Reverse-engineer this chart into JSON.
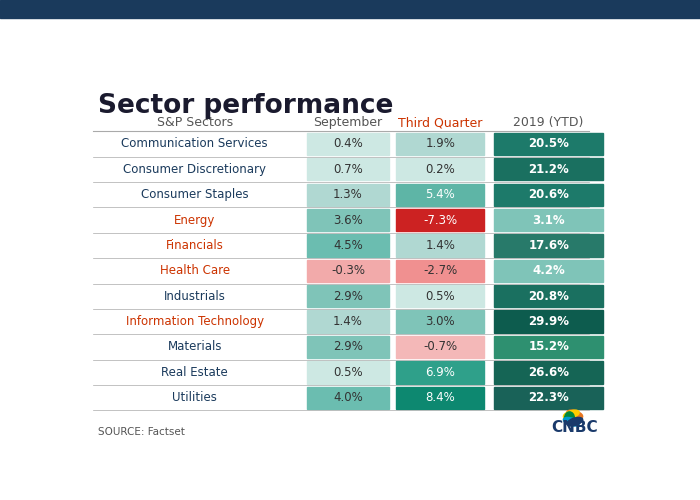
{
  "title": "Sector performance",
  "source": "SOURCE: Factset",
  "header": [
    "S&P Sectors",
    "September",
    "Third Quarter",
    "2019 (YTD)"
  ],
  "sectors": [
    "Communication Services",
    "Consumer Discretionary",
    "Consumer Staples",
    "Energy",
    "Financials",
    "Health Care",
    "Industrials",
    "Information Technology",
    "Materials",
    "Real Estate",
    "Utilities"
  ],
  "september": [
    0.4,
    0.7,
    1.3,
    3.6,
    4.5,
    -0.3,
    2.9,
    1.4,
    2.9,
    0.5,
    4.0
  ],
  "third_quarter": [
    1.9,
    0.2,
    5.4,
    -7.3,
    1.4,
    -2.7,
    0.5,
    3.0,
    -0.7,
    6.9,
    8.4
  ],
  "ytd": [
    20.5,
    21.2,
    20.6,
    3.1,
    17.6,
    4.2,
    20.8,
    29.9,
    15.2,
    26.6,
    22.3
  ],
  "top_bar_color": "#1a3a5c",
  "title_color": "#1a1a2e",
  "header_color_q3": "#cc3300",
  "header_color_other": "#555555",
  "sector_text_colors": [
    "#1a3a5c",
    "#1a3a5c",
    "#1a3a5c",
    "#cc3300",
    "#cc3300",
    "#cc3300",
    "#1a3a5c",
    "#cc3300",
    "#1a3a5c",
    "#1a3a5c",
    "#1a3a5c"
  ],
  "sept_colors": [
    "#cde8e3",
    "#cde8e3",
    "#b0d8d2",
    "#7fc4b8",
    "#6bbdb0",
    "#f2aaaa",
    "#7fc4b8",
    "#b0d8d2",
    "#7fc4b8",
    "#cde8e3",
    "#6bbdb0"
  ],
  "q3_colors": [
    "#b0d8d2",
    "#cde8e3",
    "#5eb5a6",
    "#cc2222",
    "#b0d8d2",
    "#f09090",
    "#cde8e3",
    "#7fc4b8",
    "#f4b8b8",
    "#2fa08a",
    "#0d8870"
  ],
  "ytd_colors": [
    "#1d7a6a",
    "#1a7060",
    "#1d7a6a",
    "#7fc4b8",
    "#287a6a",
    "#7fc4b8",
    "#1a7060",
    "#0d5c4e",
    "#2e9070",
    "#156555",
    "#196258"
  ],
  "q3_text_colors": [
    "#333333",
    "#333333",
    "#ffffff",
    "#ffffff",
    "#333333",
    "#333333",
    "#333333",
    "#333333",
    "#333333",
    "#ffffff",
    "#ffffff"
  ],
  "bg_color": "#ffffff",
  "cnbc_blue": "#1a3a6b",
  "line_color": "#aaaaaa"
}
